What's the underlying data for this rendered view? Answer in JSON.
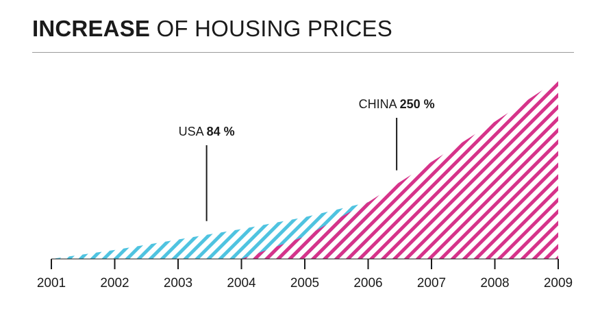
{
  "header": {
    "title_bold": "INCREASE",
    "title_rest": " OF HOUSING PRICES"
  },
  "colors": {
    "usa": "#4fc3e0",
    "china": "#d6338a",
    "axis": "#1a1a1a",
    "rule": "#9a9a9a"
  },
  "chart_data": {
    "type": "area",
    "title": "INCREASE OF HOUSING PRICES",
    "x_categories": [
      "2001",
      "2002",
      "2003",
      "2004",
      "2005",
      "2006",
      "2007",
      "2008",
      "2009"
    ],
    "grid": false,
    "series": [
      {
        "name": "USA",
        "total_label": "84 %",
        "color": "#4fc3e0",
        "x": [
          2001,
          2002,
          2003,
          2004,
          2005,
          2006
        ],
        "y": [
          0,
          6,
          13,
          20,
          28,
          38
        ]
      },
      {
        "name": "CHINA",
        "total_label": "250 %",
        "color": "#d6338a",
        "x": [
          2004,
          2005,
          2006,
          2007,
          2008,
          2009
        ],
        "y": [
          0,
          15,
          38,
          65,
          92,
          120
        ]
      }
    ],
    "annotations": [
      {
        "series": "USA",
        "prefix": "USA",
        "value": "84 %",
        "x": 2003.45
      },
      {
        "series": "CHINA",
        "prefix": "CHINA",
        "value": "250 %",
        "x": 2006.45
      }
    ]
  }
}
